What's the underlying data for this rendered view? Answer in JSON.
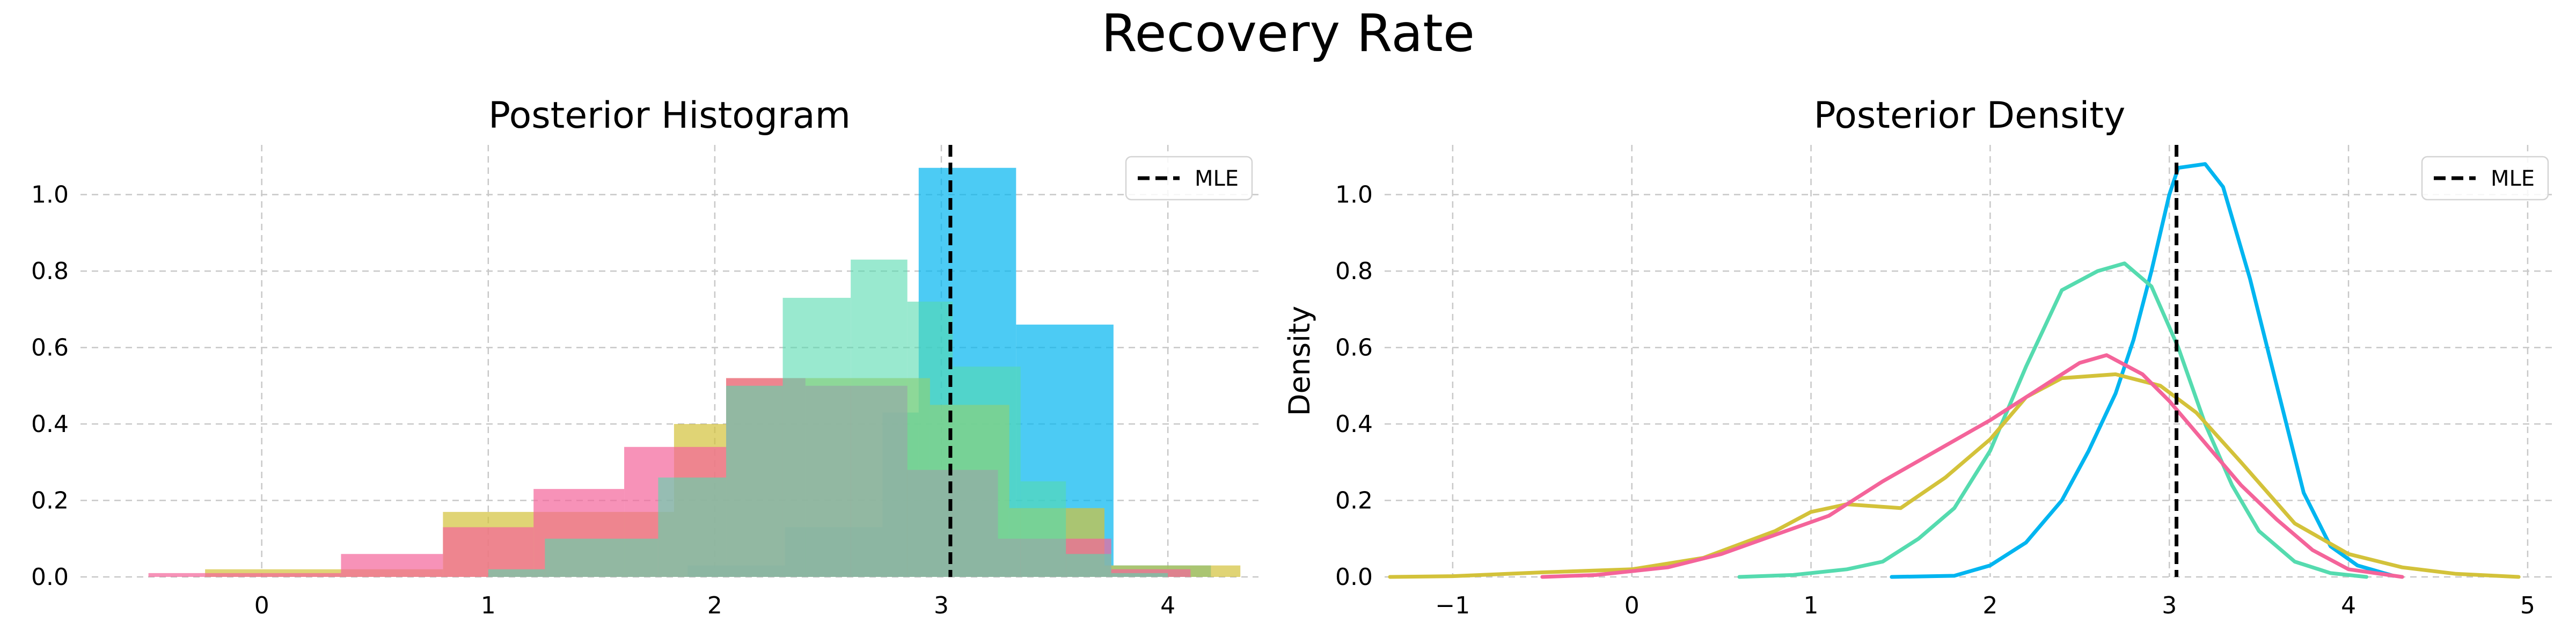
{
  "suptitle": "Recovery Rate",
  "colors": {
    "blue": "#00B5F0",
    "teal": "#55DBAF",
    "olive": "#D3C23A",
    "pink": "#F4649A",
    "grid": "#c8c8c8",
    "mle": "#000000"
  },
  "chart_data": [
    {
      "type": "bar",
      "title": "Posterior Histogram",
      "xlabel": "",
      "ylabel": "",
      "xlim": [
        -0.8,
        4.4
      ],
      "ylim": [
        0,
        1.13
      ],
      "xticks": [
        0,
        1,
        2,
        3,
        4
      ],
      "xtick_labels": [
        "0",
        "1",
        "2",
        "3",
        "4"
      ],
      "yticks": [
        0.0,
        0.2,
        0.4,
        0.6,
        0.8,
        1.0
      ],
      "ytick_labels": [
        "0.0",
        "0.2",
        "0.4",
        "0.6",
        "0.8",
        "1.0"
      ],
      "grid": true,
      "legend": {
        "position": "top-right",
        "entries": [
          "MLE"
        ]
      },
      "mle": 3.04,
      "series": [
        {
          "color": "blue",
          "opacity": 0.7,
          "bins": [
            [
              1.45,
              1.88,
              0.0
            ],
            [
              1.88,
              2.31,
              0.03
            ],
            [
              2.31,
              2.74,
              0.13
            ],
            [
              2.74,
              2.9,
              0.43
            ],
            [
              2.9,
              3.33,
              1.07
            ],
            [
              3.33,
              3.76,
              0.66
            ],
            [
              3.76,
              4.19,
              0.03
            ]
          ]
        },
        {
          "color": "olive",
          "opacity": 0.7,
          "bins": [
            [
              -0.73,
              -0.25,
              0.0
            ],
            [
              -0.25,
              0.8,
              0.02
            ],
            [
              0.8,
              1.46,
              0.17
            ],
            [
              1.46,
              1.82,
              0.17
            ],
            [
              1.82,
              2.05,
              0.4
            ],
            [
              2.05,
              2.59,
              0.52
            ],
            [
              2.59,
              2.95,
              0.52
            ],
            [
              2.95,
              3.3,
              0.45
            ],
            [
              3.3,
              3.72,
              0.18
            ],
            [
              3.72,
              4.32,
              0.03
            ]
          ]
        },
        {
          "color": "pink",
          "opacity": 0.7,
          "bins": [
            [
              -0.5,
              0.35,
              0.01
            ],
            [
              0.35,
              0.8,
              0.06
            ],
            [
              0.8,
              1.2,
              0.13
            ],
            [
              1.2,
              1.6,
              0.23
            ],
            [
              1.6,
              2.05,
              0.34
            ],
            [
              2.05,
              2.4,
              0.52
            ],
            [
              2.4,
              2.85,
              0.5
            ],
            [
              2.85,
              3.25,
              0.28
            ],
            [
              3.25,
              3.75,
              0.1
            ],
            [
              3.75,
              4.1,
              0.02
            ]
          ]
        },
        {
          "color": "teal",
          "opacity": 0.6,
          "bins": [
            [
              0.6,
              1.0,
              0.0
            ],
            [
              1.0,
              1.25,
              0.02
            ],
            [
              1.25,
              1.75,
              0.1
            ],
            [
              1.75,
              2.05,
              0.26
            ],
            [
              2.05,
              2.3,
              0.5
            ],
            [
              2.3,
              2.6,
              0.73
            ],
            [
              2.6,
              2.85,
              0.83
            ],
            [
              2.85,
              3.05,
              0.72
            ],
            [
              3.05,
              3.35,
              0.55
            ],
            [
              3.35,
              3.55,
              0.25
            ],
            [
              3.55,
              3.75,
              0.06
            ],
            [
              3.75,
              4.0,
              0.01
            ]
          ]
        }
      ]
    },
    {
      "type": "line",
      "title": "Posterior Density",
      "xlabel": "",
      "ylabel": "Density",
      "xlim": [
        -1.38,
        5.15
      ],
      "ylim": [
        0,
        1.13
      ],
      "xticks": [
        -1,
        0,
        1,
        2,
        3,
        4,
        5
      ],
      "xtick_labels": [
        "−1",
        "0",
        "1",
        "2",
        "3",
        "4",
        "5"
      ],
      "yticks": [
        0.0,
        0.2,
        0.4,
        0.6,
        0.8,
        1.0
      ],
      "ytick_labels": [
        "0.0",
        "0.2",
        "0.4",
        "0.6",
        "0.8",
        "1.0"
      ],
      "grid": true,
      "legend": {
        "position": "top-right",
        "entries": [
          "MLE"
        ]
      },
      "mle": 3.04,
      "series": [
        {
          "color": "blue",
          "points": [
            [
              1.45,
              0.0
            ],
            [
              1.8,
              0.003
            ],
            [
              2.0,
              0.03
            ],
            [
              2.2,
              0.09
            ],
            [
              2.4,
              0.2
            ],
            [
              2.55,
              0.33
            ],
            [
              2.7,
              0.48
            ],
            [
              2.8,
              0.62
            ],
            [
              2.9,
              0.8
            ],
            [
              3.0,
              1.0
            ],
            [
              3.05,
              1.07
            ],
            [
              3.2,
              1.08
            ],
            [
              3.3,
              1.02
            ],
            [
              3.45,
              0.78
            ],
            [
              3.6,
              0.5
            ],
            [
              3.75,
              0.22
            ],
            [
              3.9,
              0.08
            ],
            [
              4.05,
              0.03
            ],
            [
              4.25,
              0.003
            ]
          ]
        },
        {
          "color": "teal",
          "points": [
            [
              0.6,
              0.0
            ],
            [
              0.9,
              0.005
            ],
            [
              1.2,
              0.02
            ],
            [
              1.4,
              0.04
            ],
            [
              1.6,
              0.1
            ],
            [
              1.8,
              0.18
            ],
            [
              2.0,
              0.33
            ],
            [
              2.2,
              0.55
            ],
            [
              2.4,
              0.75
            ],
            [
              2.6,
              0.8
            ],
            [
              2.75,
              0.82
            ],
            [
              2.9,
              0.76
            ],
            [
              3.05,
              0.6
            ],
            [
              3.2,
              0.4
            ],
            [
              3.35,
              0.24
            ],
            [
              3.5,
              0.12
            ],
            [
              3.7,
              0.04
            ],
            [
              3.9,
              0.01
            ],
            [
              4.1,
              0.0
            ]
          ]
        },
        {
          "color": "olive",
          "points": [
            [
              -1.35,
              0.0
            ],
            [
              -1.0,
              0.002
            ],
            [
              -0.5,
              0.012
            ],
            [
              0.0,
              0.02
            ],
            [
              0.4,
              0.05
            ],
            [
              0.8,
              0.12
            ],
            [
              1.0,
              0.17
            ],
            [
              1.2,
              0.19
            ],
            [
              1.5,
              0.18
            ],
            [
              1.75,
              0.26
            ],
            [
              2.0,
              0.36
            ],
            [
              2.2,
              0.47
            ],
            [
              2.4,
              0.52
            ],
            [
              2.7,
              0.53
            ],
            [
              2.95,
              0.5
            ],
            [
              3.15,
              0.43
            ],
            [
              3.4,
              0.3
            ],
            [
              3.7,
              0.14
            ],
            [
              4.0,
              0.06
            ],
            [
              4.3,
              0.025
            ],
            [
              4.6,
              0.008
            ],
            [
              4.95,
              0.0
            ]
          ]
        },
        {
          "color": "pink",
          "points": [
            [
              -0.5,
              0.0
            ],
            [
              -0.2,
              0.005
            ],
            [
              0.0,
              0.015
            ],
            [
              0.2,
              0.025
            ],
            [
              0.5,
              0.06
            ],
            [
              0.8,
              0.11
            ],
            [
              1.1,
              0.16
            ],
            [
              1.4,
              0.25
            ],
            [
              1.7,
              0.33
            ],
            [
              2.0,
              0.41
            ],
            [
              2.3,
              0.5
            ],
            [
              2.5,
              0.56
            ],
            [
              2.65,
              0.58
            ],
            [
              2.85,
              0.53
            ],
            [
              3.0,
              0.46
            ],
            [
              3.2,
              0.35
            ],
            [
              3.4,
              0.24
            ],
            [
              3.6,
              0.15
            ],
            [
              3.8,
              0.07
            ],
            [
              4.0,
              0.02
            ],
            [
              4.3,
              0.0
            ]
          ]
        }
      ]
    }
  ]
}
